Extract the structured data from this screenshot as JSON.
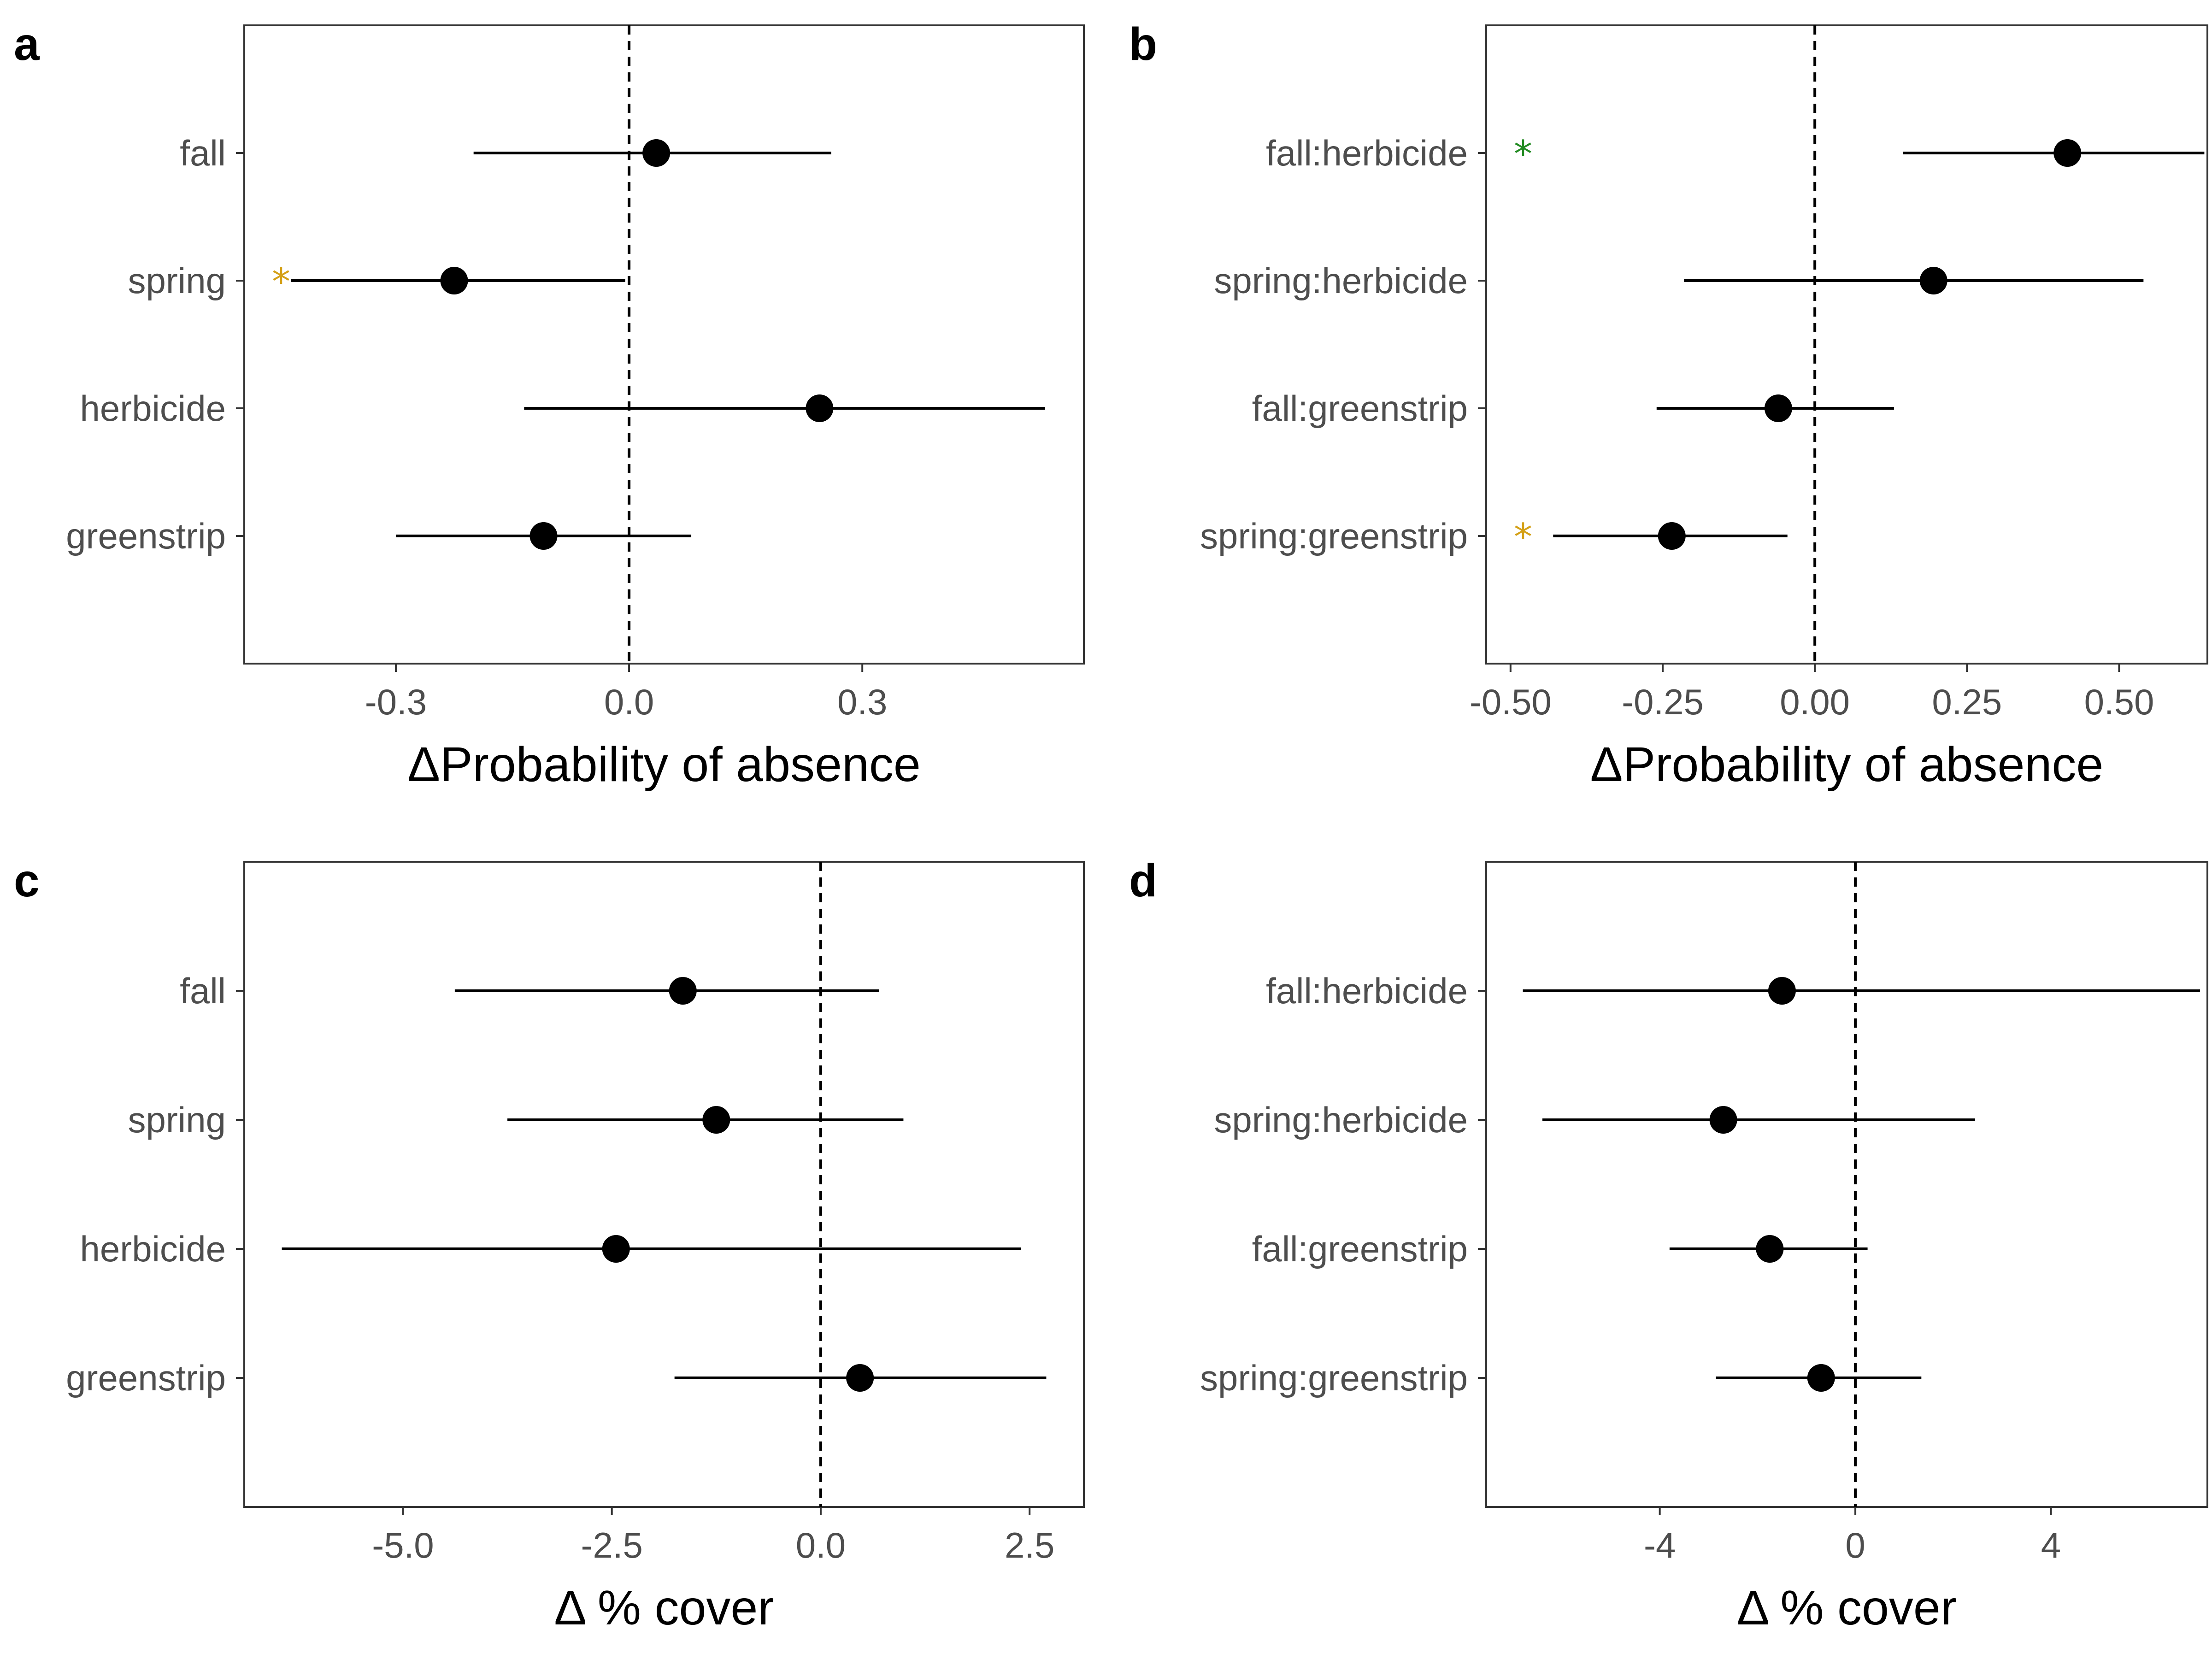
{
  "chart_data": [
    {
      "panel": "a",
      "type": "scatter",
      "xlabel": "ΔProbability of absence",
      "xlim": [
        -0.495,
        0.585
      ],
      "xticks": [
        -0.3,
        0.0,
        0.3
      ],
      "xtick_labels": [
        "-0.3",
        "0.0",
        "0.3"
      ],
      "reference_line": 0,
      "categories": [
        "fall",
        "spring",
        "herbicide",
        "greenstrip"
      ],
      "estimates": [
        0.035,
        -0.225,
        0.245,
        -0.11
      ],
      "lower": [
        -0.2,
        -0.435,
        -0.135,
        -0.3
      ],
      "upper": [
        0.26,
        -0.005,
        0.535,
        0.08
      ],
      "markers": [
        null,
        {
          "symbol": "*",
          "color": "#d4a017"
        },
        null,
        null
      ]
    },
    {
      "panel": "b",
      "type": "scatter",
      "xlabel": "ΔProbability of absence",
      "xlim": [
        -0.54,
        0.645
      ],
      "xticks": [
        -0.5,
        -0.25,
        0.0,
        0.25,
        0.5
      ],
      "xtick_labels": [
        "-0.50",
        "-0.25",
        "0.00",
        "0.25",
        "0.50"
      ],
      "reference_line": 0,
      "categories": [
        "fall:herbicide",
        "spring:herbicide",
        "fall:greenstrip",
        "spring:greenstrip"
      ],
      "estimates": [
        0.415,
        0.195,
        -0.06,
        -0.235
      ],
      "lower": [
        0.145,
        -0.215,
        -0.26,
        -0.43
      ],
      "upper": [
        0.64,
        0.54,
        0.13,
        -0.045
      ],
      "markers": [
        {
          "symbol": "*",
          "color": "#228b22"
        },
        null,
        null,
        {
          "symbol": "*",
          "color": "#d4a017"
        }
      ]
    },
    {
      "panel": "c",
      "type": "scatter",
      "xlabel": "Δ % cover",
      "xlim": [
        -6.9,
        3.15
      ],
      "xticks": [
        -5.0,
        -2.5,
        0.0,
        2.5
      ],
      "xtick_labels": [
        "-5.0",
        "-2.5",
        "0.0",
        "2.5"
      ],
      "reference_line": 0,
      "categories": [
        "fall",
        "spring",
        "herbicide",
        "greenstrip"
      ],
      "estimates": [
        -1.65,
        -1.25,
        -2.45,
        0.47
      ],
      "lower": [
        -4.38,
        -3.75,
        -6.45,
        -1.75
      ],
      "upper": [
        0.7,
        0.99,
        2.4,
        2.7
      ],
      "markers": [
        null,
        null,
        null,
        null
      ]
    },
    {
      "panel": "d",
      "type": "scatter",
      "xlabel": "Δ % cover",
      "xlim": [
        -7.55,
        7.2
      ],
      "xticks": [
        -4,
        0,
        4
      ],
      "xtick_labels": [
        "-4",
        "0",
        "4"
      ],
      "reference_line": 0,
      "categories": [
        "fall:herbicide",
        "spring:herbicide",
        "fall:greenstrip",
        "spring:greenstrip"
      ],
      "estimates": [
        -1.5,
        -2.7,
        -1.75,
        -0.7
      ],
      "lower": [
        -6.8,
        -6.4,
        -3.8,
        -2.85
      ],
      "upper": [
        7.05,
        2.45,
        0.25,
        1.35
      ],
      "markers": [
        null,
        null,
        null,
        null
      ]
    }
  ]
}
